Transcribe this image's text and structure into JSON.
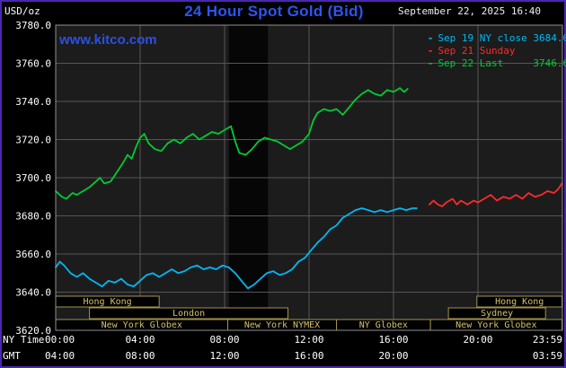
{
  "header": {
    "unit_label": "USD/oz",
    "title": "24 Hour Spot Gold (Bid)",
    "watermark": "www.kitco.com",
    "datetime": "September 22, 2025 16:40",
    "legend": [
      {
        "marker": "-",
        "label": "Sep 19 NY close 3684.00",
        "color": "#00b8f5"
      },
      {
        "marker": "-",
        "label": "Sep 21 Sunday",
        "color": "#ff2a2a"
      },
      {
        "marker": "-",
        "label": "Sep 22 Last     3746.60",
        "color": "#00cc33"
      }
    ]
  },
  "axes": {
    "ny_time_label": "NY Time",
    "gmt_label": "GMT",
    "y_ticks": [
      {
        "label": "3780.0",
        "value": 3780
      },
      {
        "label": "3760.0",
        "value": 3760
      },
      {
        "label": "3740.0",
        "value": 3740
      },
      {
        "label": "3720.0",
        "value": 3720
      },
      {
        "label": "3700.0",
        "value": 3700
      },
      {
        "label": "3680.0",
        "value": 3680
      },
      {
        "label": "3660.0",
        "value": 3660
      },
      {
        "label": "3640.0",
        "value": 3640
      },
      {
        "label": "3620.0",
        "value": 3620
      }
    ],
    "x_ticks_ny": [
      {
        "label": "00:00",
        "hour": 0,
        "align": "start"
      },
      {
        "label": "04:00",
        "hour": 4
      },
      {
        "label": "08:00",
        "hour": 8
      },
      {
        "label": "12:00",
        "hour": 12
      },
      {
        "label": "16:00",
        "hour": 16
      },
      {
        "label": "20:00",
        "hour": 20
      },
      {
        "label": "23:59",
        "hour": 23.983,
        "align": "end"
      }
    ],
    "x_ticks_gmt": [
      {
        "label": "04:00",
        "hour": 0,
        "align": "start"
      },
      {
        "label": "08:00",
        "hour": 4
      },
      {
        "label": "12:00",
        "hour": 8
      },
      {
        "label": "16:00",
        "hour": 12
      },
      {
        "label": "20:00",
        "hour": 16
      },
      {
        "label": "03:59",
        "hour": 23.983,
        "align": "end"
      }
    ]
  },
  "chart_data": {
    "type": "line",
    "title": "24 Hour Spot Gold (Bid)",
    "ylabel": "USD/oz",
    "ylim": [
      3620,
      3780
    ],
    "xlim": [
      0,
      24
    ],
    "x_unit": "NY time (hours)",
    "grid": true,
    "legend_position": "top-right",
    "series": [
      {
        "id": "sep19",
        "name": "Sep 19 NY close",
        "close": 3684.0,
        "color": "#00b8f5",
        "points": [
          [
            0,
            3653
          ],
          [
            0.2,
            3656
          ],
          [
            0.4,
            3654
          ],
          [
            0.7,
            3650
          ],
          [
            1,
            3648
          ],
          [
            1.3,
            3650
          ],
          [
            1.6,
            3647
          ],
          [
            1.9,
            3645
          ],
          [
            2.2,
            3643
          ],
          [
            2.5,
            3646
          ],
          [
            2.8,
            3645
          ],
          [
            3.1,
            3647
          ],
          [
            3.4,
            3644
          ],
          [
            3.7,
            3643
          ],
          [
            4,
            3646
          ],
          [
            4.3,
            3649
          ],
          [
            4.6,
            3650
          ],
          [
            4.9,
            3648
          ],
          [
            5.2,
            3650
          ],
          [
            5.5,
            3652
          ],
          [
            5.8,
            3650
          ],
          [
            6.1,
            3651
          ],
          [
            6.4,
            3653
          ],
          [
            6.7,
            3654
          ],
          [
            7,
            3652
          ],
          [
            7.3,
            3653
          ],
          [
            7.6,
            3652
          ],
          [
            7.9,
            3654
          ],
          [
            8.2,
            3653
          ],
          [
            8.5,
            3650
          ],
          [
            8.8,
            3646
          ],
          [
            9.1,
            3642
          ],
          [
            9.4,
            3644
          ],
          [
            9.7,
            3647
          ],
          [
            10,
            3650
          ],
          [
            10.3,
            3651
          ],
          [
            10.6,
            3649
          ],
          [
            10.9,
            3650
          ],
          [
            11.2,
            3652
          ],
          [
            11.5,
            3656
          ],
          [
            11.8,
            3658
          ],
          [
            12.1,
            3662
          ],
          [
            12.4,
            3666
          ],
          [
            12.7,
            3669
          ],
          [
            13,
            3673
          ],
          [
            13.3,
            3675
          ],
          [
            13.6,
            3679
          ],
          [
            13.9,
            3681
          ],
          [
            14.2,
            3683
          ],
          [
            14.5,
            3684
          ],
          [
            14.8,
            3683
          ],
          [
            15.1,
            3682
          ],
          [
            15.4,
            3683
          ],
          [
            15.7,
            3682
          ],
          [
            16,
            3683
          ],
          [
            16.3,
            3684
          ],
          [
            16.6,
            3683
          ],
          [
            16.9,
            3684
          ],
          [
            17.1,
            3684
          ]
        ]
      },
      {
        "id": "sep21",
        "name": "Sep 21 Sunday",
        "color": "#ff2a2a",
        "points": [
          [
            17.7,
            3686
          ],
          [
            17.9,
            3688
          ],
          [
            18.1,
            3686
          ],
          [
            18.3,
            3685
          ],
          [
            18.5,
            3687
          ],
          [
            18.8,
            3689
          ],
          [
            19,
            3686
          ],
          [
            19.2,
            3688
          ],
          [
            19.5,
            3686
          ],
          [
            19.8,
            3688
          ],
          [
            20,
            3687
          ],
          [
            20.3,
            3689
          ],
          [
            20.6,
            3691
          ],
          [
            20.9,
            3688
          ],
          [
            21.2,
            3690
          ],
          [
            21.5,
            3689
          ],
          [
            21.8,
            3691
          ],
          [
            22.1,
            3689
          ],
          [
            22.4,
            3692
          ],
          [
            22.7,
            3690
          ],
          [
            23,
            3691
          ],
          [
            23.3,
            3693
          ],
          [
            23.6,
            3692
          ],
          [
            23.8,
            3694
          ],
          [
            23.98,
            3697
          ]
        ]
      },
      {
        "id": "sep22",
        "name": "Sep 22",
        "last": 3746.6,
        "color": "#00cc33",
        "points": [
          [
            0,
            3693
          ],
          [
            0.3,
            3690
          ],
          [
            0.5,
            3689
          ],
          [
            0.8,
            3692
          ],
          [
            1,
            3691
          ],
          [
            1.3,
            3693
          ],
          [
            1.6,
            3695
          ],
          [
            1.9,
            3698
          ],
          [
            2.1,
            3700
          ],
          [
            2.3,
            3697
          ],
          [
            2.6,
            3698
          ],
          [
            2.9,
            3703
          ],
          [
            3.2,
            3708
          ],
          [
            3.4,
            3712
          ],
          [
            3.6,
            3710
          ],
          [
            3.8,
            3716
          ],
          [
            4,
            3721
          ],
          [
            4.2,
            3723
          ],
          [
            4.4,
            3718
          ],
          [
            4.7,
            3715
          ],
          [
            5,
            3714
          ],
          [
            5.3,
            3718
          ],
          [
            5.6,
            3720
          ],
          [
            5.9,
            3718
          ],
          [
            6.2,
            3721
          ],
          [
            6.5,
            3723
          ],
          [
            6.8,
            3720
          ],
          [
            7.1,
            3722
          ],
          [
            7.4,
            3724
          ],
          [
            7.7,
            3723
          ],
          [
            8,
            3725
          ],
          [
            8.3,
            3727
          ],
          [
            8.5,
            3719
          ],
          [
            8.7,
            3713
          ],
          [
            9,
            3712
          ],
          [
            9.3,
            3715
          ],
          [
            9.6,
            3719
          ],
          [
            9.9,
            3721
          ],
          [
            10.2,
            3720
          ],
          [
            10.5,
            3719
          ],
          [
            10.8,
            3717
          ],
          [
            11.1,
            3715
          ],
          [
            11.4,
            3717
          ],
          [
            11.7,
            3719
          ],
          [
            12,
            3723
          ],
          [
            12.2,
            3730
          ],
          [
            12.4,
            3734
          ],
          [
            12.7,
            3736
          ],
          [
            13,
            3735
          ],
          [
            13.3,
            3736
          ],
          [
            13.6,
            3733
          ],
          [
            13.9,
            3737
          ],
          [
            14.2,
            3741
          ],
          [
            14.5,
            3744
          ],
          [
            14.8,
            3746
          ],
          [
            15.1,
            3744
          ],
          [
            15.4,
            3743
          ],
          [
            15.7,
            3746
          ],
          [
            16,
            3745
          ],
          [
            16.3,
            3747
          ],
          [
            16.5,
            3745
          ],
          [
            16.67,
            3746.6
          ]
        ]
      }
    ],
    "dark_band": {
      "start_hour": 8.2,
      "end_hour": 10.05
    },
    "sessions": [
      {
        "row": 1,
        "label": "Hong Kong",
        "start_hour": 0,
        "end_hour": 4.9
      },
      {
        "row": 1,
        "label": "Hong Kong",
        "start_hour": 19.95,
        "end_hour": 23.98
      },
      {
        "row": 2,
        "label": "London",
        "start_hour": 1.6,
        "end_hour": 11.0
      },
      {
        "row": 2,
        "label": "Sydney",
        "start_hour": 18.6,
        "end_hour": 23.2
      },
      {
        "row": 3,
        "label": "New York Globex",
        "start_hour": 0,
        "end_hour": 8.15
      },
      {
        "row": 3,
        "label": "New York NYMEX",
        "start_hour": 8.15,
        "end_hour": 13.3
      },
      {
        "row": 3,
        "label": "NY Globex",
        "start_hour": 13.3,
        "end_hour": 17.75
      },
      {
        "row": 3,
        "label": "New York Globex",
        "start_hour": 17.75,
        "end_hour": 23.98
      }
    ]
  },
  "colors": {
    "frame_border": "#4a28b0",
    "background": "#000000",
    "plot_background": "#1c1c1c",
    "dark_band": "#060606",
    "grid": "#565656",
    "plot_border": "#909090",
    "axis_text": "#ffffff",
    "title_blue": "#2e55ee",
    "kitco_link_blue": "#2b50e6",
    "session_border": "#a3934e",
    "session_text": "#d2c172",
    "session_fill": "#000000"
  }
}
